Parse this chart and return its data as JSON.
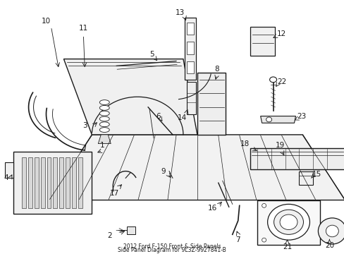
{
  "title": "2012 Ford F-150 Front & Side Panels\nSide Panel Diagram for 9L3Z-9927841-B",
  "bg_color": "#ffffff",
  "lc": "#1a1a1a",
  "fig_width": 4.89,
  "fig_height": 3.6,
  "dpi": 100
}
